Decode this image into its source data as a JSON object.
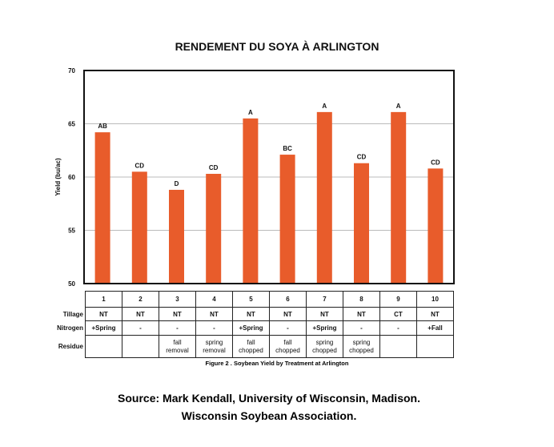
{
  "chart_data": {
    "type": "bar",
    "title": "RENDEMENT DU SOYA À ARLINGTON",
    "ylabel": "Yield (bu/ac)",
    "xlabel": "",
    "ylim": [
      50,
      70
    ],
    "yticks": [
      "50",
      "55",
      "60",
      "65",
      "70"
    ],
    "grid": true,
    "color": "#E85C2B",
    "categories": [
      "1",
      "2",
      "3",
      "4",
      "5",
      "6",
      "7",
      "8",
      "9",
      "10"
    ],
    "values": [
      64.2,
      60.5,
      58.8,
      60.3,
      65.5,
      62.1,
      66.1,
      61.3,
      66.1,
      60.8
    ],
    "letters": [
      "AB",
      "CD",
      "D",
      "CD",
      "A",
      "BC",
      "A",
      "CD",
      "A",
      "CD"
    ]
  },
  "table": {
    "row_labels": [
      "Tillage",
      "Nitrogen",
      "Residue"
    ],
    "tillage": [
      "NT",
      "NT",
      "NT",
      "NT",
      "NT",
      "NT",
      "NT",
      "NT",
      "CT",
      "NT"
    ],
    "nitrogen": [
      "+Spring",
      "-",
      "-",
      "-",
      "+Spring",
      "-",
      "+Spring",
      "-",
      "-",
      "+Fall"
    ],
    "residue": [
      [
        "",
        ""
      ],
      [
        "",
        ""
      ],
      [
        "fall",
        "removal"
      ],
      [
        "spring",
        "removal"
      ],
      [
        "fall",
        "chopped"
      ],
      [
        "fall",
        "chopped"
      ],
      [
        "spring",
        "chopped"
      ],
      [
        "spring",
        "chopped"
      ],
      [
        "",
        ""
      ],
      [
        "",
        ""
      ]
    ]
  },
  "caption": "Figure 2 . Soybean Yield by Treatment at Arlington",
  "source": [
    "Source: Mark Kendall, University of Wisconsin, Madison.",
    "Wisconsin Soybean Association."
  ]
}
